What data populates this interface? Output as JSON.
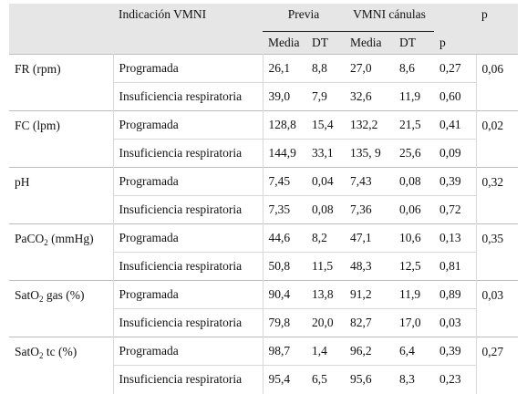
{
  "headers": {
    "indicacion": "Indicación VMNI",
    "previa": "Previa",
    "vmni": "VMNI cánulas",
    "p": "p",
    "media1": "Media",
    "dt1": "DT",
    "media2": "Media",
    "dt2": "DT",
    "p2": "p"
  },
  "rows": [
    {
      "param": "FR (rpm)",
      "param_sub": "",
      "param_tail": "",
      "p_group": "0,06",
      "items": [
        {
          "ind": "Programada",
          "m1": "26,1",
          "dt1": "8,8",
          "m2": "27,0",
          "dt2": "8,6",
          "p": "0,27"
        },
        {
          "ind": "Insuficiencia respiratoria",
          "m1": "39,0",
          "dt1": "7,9",
          "m2": "32,6",
          "dt2": "11,9",
          "p": "0,60"
        }
      ]
    },
    {
      "param": "FC (lpm)",
      "param_sub": "",
      "param_tail": "",
      "p_group": "0,02",
      "items": [
        {
          "ind": "Programada",
          "m1": "128,8",
          "dt1": "15,4",
          "m2": "132,2",
          "dt2": "21,5",
          "p": "0,41"
        },
        {
          "ind": "Insuficiencia respiratoria",
          "m1": "144,9",
          "dt1": "33,1",
          "m2": "135, 9",
          "dt2": "25,6",
          "p": "0,09"
        }
      ]
    },
    {
      "param": "pH",
      "param_sub": "",
      "param_tail": "",
      "p_group": "0,32",
      "items": [
        {
          "ind": "Programada",
          "m1": "7,45",
          "dt1": "0,04",
          "m2": "7,43",
          "dt2": "0,08",
          "p": "0,39"
        },
        {
          "ind": "Insuficiencia respiratoria",
          "m1": "7,35",
          "dt1": "0,08",
          "m2": "7,36",
          "dt2": "0,06",
          "p": "0,72"
        }
      ]
    },
    {
      "param": "PaCO",
      "param_sub": "2",
      "param_tail": " (mmHg)",
      "p_group": "0,35",
      "items": [
        {
          "ind": "Programada",
          "m1": "44,6",
          "dt1": "8,2",
          "m2": "47,1",
          "dt2": "10,6",
          "p": "0,13"
        },
        {
          "ind": "Insuficiencia respiratoria",
          "m1": "50,8",
          "dt1": "11,5",
          "m2": "48,3",
          "dt2": "12,5",
          "p": "0,81"
        }
      ]
    },
    {
      "param": "SatO",
      "param_sub": "2",
      "param_tail": " gas (%)",
      "p_group": "0,03",
      "items": [
        {
          "ind": "Programada",
          "m1": "90,4",
          "dt1": "13,8",
          "m2": "91,2",
          "dt2": "11,9",
          "p": "0,89"
        },
        {
          "ind": "Insuficiencia respiratoria",
          "m1": "79,8",
          "dt1": "20,0",
          "m2": "82,7",
          "dt2": "17,0",
          "p": "0,03"
        }
      ]
    },
    {
      "param": "SatO",
      "param_sub": "2",
      "param_tail": " tc (%)",
      "p_group": "0,27",
      "items": [
        {
          "ind": "Programada",
          "m1": "98,7",
          "dt1": "1,4",
          "m2": "96,2",
          "dt2": "6,4",
          "p": "0,39"
        },
        {
          "ind": "Insuficiencia respiratoria",
          "m1": "95,4",
          "dt1": "6,5",
          "m2": "95,6",
          "dt2": "8,3",
          "p": "0,23"
        }
      ]
    }
  ]
}
